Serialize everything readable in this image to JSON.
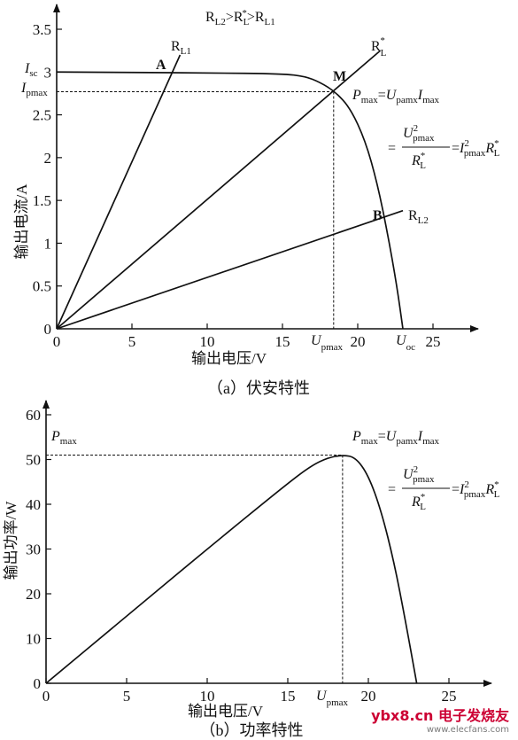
{
  "watermark": {
    "site": "ybx8.cn",
    "brand": "电子发烧友",
    "url": "www.elecfans.com"
  },
  "chart_data": [
    {
      "type": "line",
      "panel_caption": "（a）伏安特性",
      "xlabel": "输出电压/V",
      "ylabel": "输出电流/A",
      "xlim": [
        0,
        27
      ],
      "ylim": [
        0,
        3.5
      ],
      "x_ticks": [
        "0",
        "5",
        "10",
        "15",
        "20",
        "25"
      ],
      "y_ticks": [
        "0",
        "0.5",
        "1",
        "1.5",
        "2",
        "2.5",
        "3",
        "3.5"
      ],
      "top_note": "RL2>RL*>RL1",
      "series": [
        {
          "name": "I-V",
          "x": [
            0,
            5,
            10,
            15,
            16.5,
            17.5,
            18.5,
            19.5,
            20.5,
            21.3,
            22,
            22.6,
            23
          ],
          "y": [
            3.0,
            2.995,
            2.99,
            2.98,
            2.95,
            2.88,
            2.77,
            2.58,
            2.2,
            1.7,
            1.1,
            0.5,
            0.0
          ]
        },
        {
          "name": "RL1",
          "x": [
            0,
            8.2
          ],
          "y": [
            0,
            3.2
          ]
        },
        {
          "name": "RL*",
          "x": [
            0,
            21.5
          ],
          "y": [
            0,
            3.25
          ]
        },
        {
          "name": "RL2",
          "x": [
            0,
            23
          ],
          "y": [
            0,
            1.38
          ]
        }
      ],
      "points": [
        {
          "label": "A",
          "x": 7.5,
          "y": 2.98
        },
        {
          "label": "M",
          "x": 18.4,
          "y": 2.77
        },
        {
          "label": "B",
          "x": 21.8,
          "y": 1.3
        }
      ],
      "line_labels": {
        "RL1": "R",
        "RL1_sub": "L1",
        "RLs": "R",
        "RLs_sub": "L",
        "RLs_sup": "*",
        "RL2": "R",
        "RL2_sub": "L2"
      },
      "axis_annotations": {
        "Isc": "I",
        "Isc_sub": "sc",
        "Ipmax": "I",
        "Ipmax_sub": "pmax",
        "Upmax": "U",
        "Upmax_sub": "pmax",
        "Uoc": "U",
        "Uoc_sub": "oc"
      },
      "formula": {
        "line1_P": "P",
        "line1_P_sub": "max",
        "line1_eq": "=",
        "line1_U": "U",
        "line1_U_sub": "pamx",
        "line1_I": "I",
        "line1_I_sub": "max",
        "line2_eq": "=",
        "frac_num_U": "U",
        "frac_num_sup": "2",
        "frac_num_sub": "pmax",
        "frac_den_R": "R",
        "frac_den_sup": "*",
        "frac_den_sub": "L",
        "rhs_eq": "=",
        "rhs_I": "I",
        "rhs_I_sup": "2",
        "rhs_I_sub": "pmax",
        "rhs_R": "R",
        "rhs_R_sup": "*",
        "rhs_R_sub": "L"
      }
    },
    {
      "type": "line",
      "panel_caption": "（b）功率特性",
      "xlabel": "输出电压/V",
      "ylabel": "输出功率/W",
      "xlim": [
        0,
        27
      ],
      "ylim": [
        0,
        60
      ],
      "x_ticks": [
        "0",
        "5",
        "10",
        "15",
        "20",
        "25"
      ],
      "y_ticks": [
        "0",
        "10",
        "20",
        "30",
        "40",
        "50",
        "60"
      ],
      "series": [
        {
          "name": "P-V",
          "x": [
            0,
            5,
            10,
            15,
            16.5,
            17.5,
            18.4,
            19.2,
            20,
            20.8,
            21.6,
            22.3,
            23
          ],
          "y": [
            0,
            15,
            30,
            44.7,
            48.7,
            50.4,
            51.0,
            50.5,
            46.5,
            38.5,
            27,
            14,
            0
          ]
        }
      ],
      "axis_annotations": {
        "Pmax": "P",
        "Pmax_sub": "max",
        "Upmax": "U",
        "Upmax_sub": "pmax"
      },
      "formula": {
        "line1_P": "P",
        "line1_P_sub": "max",
        "line1_eq": "=",
        "line1_U": "U",
        "line1_U_sub": "pamx",
        "line1_I": "I",
        "line1_I_sub": "max",
        "line2_eq": "=",
        "frac_num_U": "U",
        "frac_num_sup": "2",
        "frac_num_sub": "pmax",
        "frac_den_R": "R",
        "frac_den_sup": "*",
        "frac_den_sub": "L",
        "rhs_eq": "=",
        "rhs_I": "I",
        "rhs_I_sup": "2",
        "rhs_I_sub": "pmax",
        "rhs_R": "R",
        "rhs_R_sup": "*",
        "rhs_R_sub": "L"
      }
    }
  ]
}
